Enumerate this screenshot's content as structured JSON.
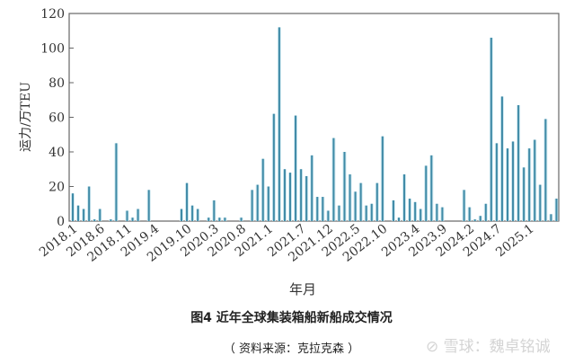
{
  "chart_data": {
    "type": "bar",
    "ylabel": "运力/万TEU",
    "xlabel": "年月",
    "ylim": [
      0,
      120
    ],
    "yticks": [
      0,
      20,
      40,
      60,
      80,
      100,
      120
    ],
    "grid": false,
    "start_month": "2018.1",
    "xtick_labels": [
      "2018.1",
      "2018.6",
      "2018.11",
      "2019.4",
      "2019.10",
      "2020.3",
      "2020.8",
      "2021.1",
      "2021.7",
      "2021.12",
      "2022.5",
      "2022.10",
      "2023.4",
      "2023.9",
      "2024.2",
      "2024.7",
      "2025.1"
    ],
    "values": [
      16,
      9,
      7,
      20,
      1,
      7,
      0,
      1,
      45,
      0,
      6,
      2,
      7,
      0,
      18,
      0,
      0,
      0,
      0,
      0,
      7,
      22,
      9,
      7,
      0,
      2,
      12,
      2,
      2,
      0,
      0,
      2,
      0,
      18,
      21,
      36,
      20,
      62,
      112,
      30,
      28,
      61,
      30,
      26,
      38,
      14,
      14,
      6,
      48,
      9,
      40,
      27,
      17,
      22,
      9,
      10,
      22,
      49,
      0,
      12,
      2,
      27,
      13,
      11,
      7,
      32,
      38,
      10,
      8,
      0,
      0,
      0,
      18,
      8,
      1,
      3,
      10,
      106,
      45,
      72,
      42,
      46,
      67,
      31,
      42,
      47,
      21,
      59,
      4,
      13
    ],
    "color": "#3f8aa6"
  },
  "caption": {
    "title": "图4  近年全球集装箱船新船成交情况",
    "source": "（ 资料来源：克拉克森 ）"
  },
  "watermark": "雪球：魏卓铭诚"
}
